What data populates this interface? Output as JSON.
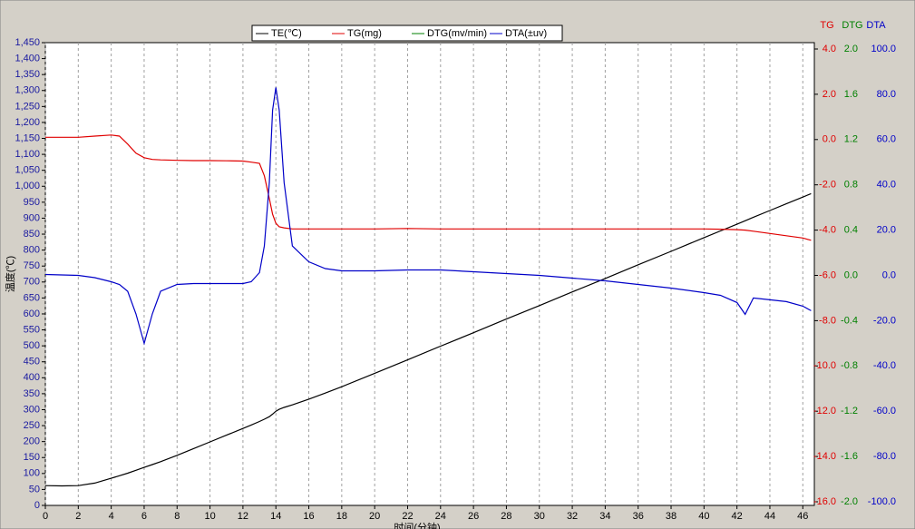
{
  "chart_data": {
    "type": "line",
    "x_label": "时间(分钟)",
    "y_label": "温度(℃)",
    "axis_titles": [
      {
        "text": "TG",
        "color": "#e00000"
      },
      {
        "text": "DTG",
        "color": "#008000"
      },
      {
        "text": "DTA",
        "color": "#0000c8"
      }
    ],
    "x": [
      0,
      1,
      2,
      3,
      4,
      4.5,
      5,
      5.5,
      6,
      6.5,
      7,
      8,
      9,
      10,
      11,
      12,
      12.5,
      13,
      13.3,
      13.6,
      13.8,
      14,
      14.2,
      14.5,
      15,
      16,
      17,
      18,
      20,
      22,
      24,
      26,
      28,
      30,
      32,
      34,
      36,
      38,
      40,
      41,
      42,
      42.5,
      43,
      44,
      45,
      46,
      46.5
    ],
    "series": [
      {
        "name": "TE(℃)",
        "color": "#000000",
        "axis": "y",
        "values": [
          62,
          61,
          62,
          70,
          85,
          93,
          101,
          110,
          119,
          128,
          137,
          157,
          178,
          199,
          220,
          241,
          252,
          263,
          270,
          278,
          286,
          295,
          301,
          307,
          315,
          333,
          352,
          372,
          414,
          456,
          499,
          541,
          584,
          626,
          669,
          711,
          754,
          796,
          839,
          860,
          881,
          892,
          903,
          924,
          945,
          966,
          977
        ]
      },
      {
        "name": "TG(mg)",
        "color": "#e00000",
        "axis": "y2",
        "values": [
          0.1,
          0.1,
          0.1,
          0.15,
          0.2,
          0.15,
          -0.2,
          -0.6,
          -0.8,
          -0.88,
          -0.9,
          -0.92,
          -0.93,
          -0.93,
          -0.94,
          -0.95,
          -1.0,
          -1.05,
          -1.6,
          -2.6,
          -3.3,
          -3.7,
          -3.85,
          -3.9,
          -3.95,
          -3.95,
          -3.95,
          -3.95,
          -3.95,
          -3.93,
          -3.95,
          -3.95,
          -3.95,
          -3.95,
          -3.95,
          -3.95,
          -3.95,
          -3.95,
          -3.95,
          -3.96,
          -3.98,
          -4.0,
          -4.05,
          -4.15,
          -4.25,
          -4.35,
          -4.45
        ]
      },
      {
        "name": "DTG(mv/min)",
        "color": "#008000",
        "axis": "y3",
        "values": [
          null,
          null,
          null,
          null,
          null,
          null,
          null,
          null,
          null,
          null,
          null,
          null,
          null,
          null,
          null,
          null,
          null,
          null,
          null,
          null,
          null,
          null,
          null,
          null,
          null,
          null,
          null,
          null,
          null,
          null,
          null,
          null,
          null,
          null,
          null,
          null,
          null,
          null,
          null,
          null,
          null,
          null,
          null,
          null,
          null,
          null,
          null
        ]
      },
      {
        "name": "DTA(±uv)",
        "color": "#0000c8",
        "axis": "y4",
        "values": [
          0.4,
          0.2,
          0,
          -1,
          -2.8,
          -4,
          -7,
          -17,
          -30,
          -17,
          -7,
          -4,
          -3.6,
          -3.6,
          -3.6,
          -3.6,
          -2.8,
          1.2,
          13,
          41,
          73,
          83,
          73,
          41,
          13,
          6,
          3,
          2,
          2,
          2.4,
          2.4,
          1.6,
          0.8,
          0,
          -1.2,
          -2.4,
          -4,
          -5.6,
          -7.6,
          -8.8,
          -12,
          -17.2,
          -10,
          -10.8,
          -11.6,
          -13.6,
          -15.6
        ]
      }
    ],
    "xlim": [
      0,
      46.7
    ],
    "xticks": [
      0,
      2,
      4,
      6,
      8,
      10,
      12,
      14,
      16,
      18,
      20,
      22,
      24,
      26,
      28,
      30,
      32,
      34,
      36,
      38,
      40,
      42,
      44,
      46
    ],
    "xgrid": true,
    "ylim": [
      0,
      1450
    ],
    "yticks": [
      0,
      50,
      100,
      150,
      200,
      250,
      300,
      350,
      400,
      450,
      500,
      550,
      600,
      650,
      700,
      750,
      800,
      850,
      900,
      950,
      {
        "value": 1000,
        "label": "1,000"
      },
      {
        "value": 1050,
        "label": "1,050"
      },
      {
        "value": 1100,
        "label": "1,100"
      },
      {
        "value": 1150,
        "label": "1,150"
      },
      {
        "value": 1200,
        "label": "1,200"
      },
      {
        "value": 1250,
        "label": "1,250"
      },
      {
        "value": 1300,
        "label": "1,300"
      },
      {
        "value": 1350,
        "label": "1,350"
      },
      {
        "value": 1400,
        "label": "1,400"
      },
      {
        "value": 1450,
        "label": "1,450"
      }
    ],
    "y2lim": [
      -16.16,
      4.28
    ],
    "y2ticks": [
      {
        "value": 4,
        "label": "4.0"
      },
      {
        "value": 2,
        "label": "2.0"
      },
      {
        "value": 0,
        "label": "0.0"
      },
      {
        "value": -2,
        "label": "-2.0"
      },
      {
        "value": -4,
        "label": "-4.0"
      },
      {
        "value": -6,
        "label": "-6.0"
      },
      {
        "value": -8,
        "label": "-8.0"
      },
      {
        "value": -10,
        "label": "-10.0"
      },
      {
        "value": -12,
        "label": "-12.0"
      },
      {
        "value": -14,
        "label": "-14.0"
      },
      {
        "value": -16,
        "label": "-16.0"
      }
    ],
    "y3lim": [
      -2.032,
      2.056
    ],
    "y3ticks": [
      {
        "value": 2,
        "label": "2.0"
      },
      1.6,
      1.2,
      0.8,
      0.4,
      {
        "value": 0,
        "label": "0.0"
      },
      -0.4,
      -0.8,
      -1.2,
      -1.6,
      {
        "value": -2,
        "label": "-2.0"
      }
    ],
    "y4lim": [
      -101.6,
      102.8
    ],
    "y4ticks": [
      {
        "value": 100,
        "label": "100.0"
      },
      {
        "value": 80,
        "label": "80.0"
      },
      {
        "value": 60,
        "label": "60.0"
      },
      {
        "value": 40,
        "label": "40.0"
      },
      {
        "value": 20,
        "label": "20.0"
      },
      {
        "value": 0,
        "label": "0.0"
      },
      {
        "value": -20,
        "label": "-20.0"
      },
      {
        "value": -40,
        "label": "-40.0"
      },
      {
        "value": -60,
        "label": "-60.0"
      },
      {
        "value": -80,
        "label": "-80.0"
      },
      {
        "value": -100,
        "label": "-100.0"
      }
    ]
  }
}
